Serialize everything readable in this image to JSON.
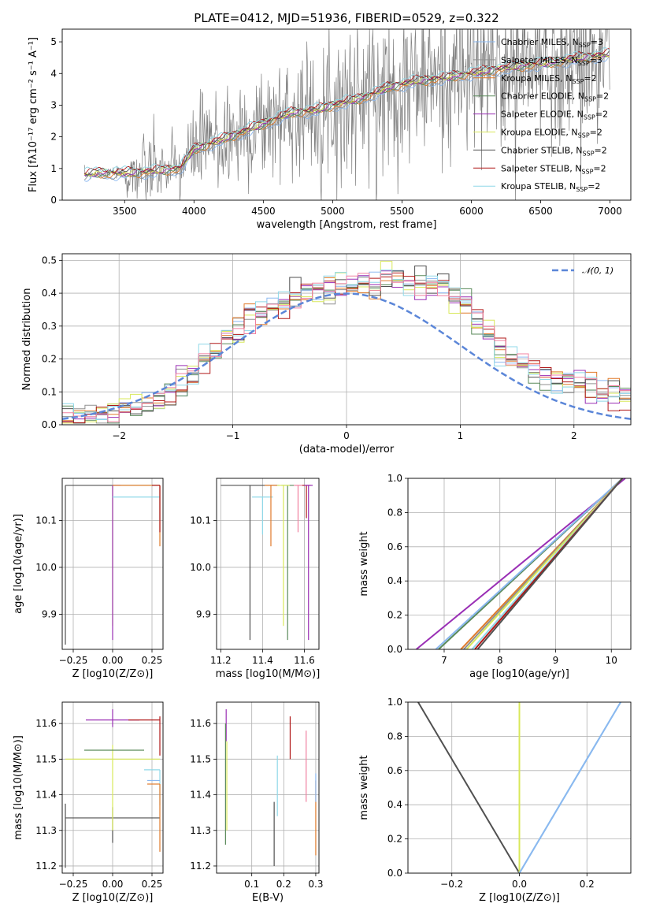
{
  "figure_title": "PLATE=0412, MJD=51936, FIBERID=0529, z=0.322",
  "colors": {
    "data": "#808080",
    "Chabrier MILES": "#8bb8f0",
    "Salpeter MILES": "#909090",
    "Kroupa MILES": "#e07a2a",
    "Chabrier ELODIE": "#5a8a5a",
    "Salpeter ELODIE": "#9a2fb5",
    "Kroupa ELODIE": "#d8e85a",
    "Chabrier STELIB": "#505050",
    "Salpeter STELIB": "#b01818",
    "Kroupa STELIB": "#8fd8e8",
    "extra_pink": "#f080a0",
    "normal_curve": "#5b86d8"
  },
  "legend_labels": [
    {
      "name": "Chabrier MILES",
      "text": "Chabrier MILES, N",
      "sub": "SSP",
      "rest": "=3"
    },
    {
      "name": "Salpeter MILES",
      "text": "Salpeter MILES, N",
      "sub": "SSP",
      "rest": "=3"
    },
    {
      "name": "Kroupa MILES",
      "text": "Kroupa MILES, N",
      "sub": "SSP",
      "rest": "=2"
    },
    {
      "name": "Chabrier ELODIE",
      "text": "Chabrier ELODIE, N",
      "sub": "SSP",
      "rest": "=2"
    },
    {
      "name": "Salpeter ELODIE",
      "text": "Salpeter ELODIE, N",
      "sub": "SSP",
      "rest": "=2"
    },
    {
      "name": "Kroupa ELODIE",
      "text": "Kroupa ELODIE, N",
      "sub": "SSP",
      "rest": "=2"
    },
    {
      "name": "Chabrier STELIB",
      "text": "Chabrier STELIB, N",
      "sub": "SSP",
      "rest": "=2"
    },
    {
      "name": "Salpeter STELIB",
      "text": "Salpeter STELIB, N",
      "sub": "SSP",
      "rest": "=2"
    },
    {
      "name": "Kroupa STELIB",
      "text": "Kroupa STELIB, N",
      "sub": "SSP",
      "rest": "=2"
    }
  ],
  "chart_data": [
    {
      "id": "spectrum",
      "type": "line",
      "xlabel": "wavelength [Angstrom, rest frame]",
      "ylabel": "Flux [fλ10⁻¹⁷ erg cm⁻² s⁻¹ A⁻¹]",
      "xlim": [
        3050,
        7150
      ],
      "ylim": [
        0,
        5.4
      ],
      "xticks": [
        3500,
        4000,
        4500,
        5000,
        5500,
        6000,
        6500,
        7000
      ],
      "yticks": [
        0,
        1,
        2,
        3,
        4,
        5
      ],
      "grid": false,
      "legend": "top-right",
      "model_anchor_x": [
        3210,
        3300,
        3500,
        3700,
        3900,
        4000,
        4200,
        4500,
        4700,
        4900,
        5000,
        5200,
        5400,
        5600,
        5800,
        6000,
        6300,
        6600,
        6800,
        7000
      ],
      "model_anchor_y": [
        0.8,
        0.85,
        0.85,
        0.9,
        1.0,
        1.6,
        1.9,
        2.4,
        2.75,
        2.85,
        3.0,
        3.2,
        3.55,
        3.75,
        3.85,
        4.0,
        4.2,
        4.35,
        4.5,
        4.6
      ],
      "data_range": [
        3210,
        7000
      ]
    },
    {
      "id": "residuals",
      "type": "histogram",
      "xlabel": "(data-model)/error",
      "ylabel": "Normed distribution",
      "xlim": [
        -2.5,
        2.5
      ],
      "ylim": [
        0,
        0.52
      ],
      "xticks": [
        -2,
        -1,
        0,
        1,
        2
      ],
      "yticks": [
        0.0,
        0.1,
        0.2,
        0.3,
        0.4,
        0.5
      ],
      "grid": true,
      "legend": "top-right",
      "legend_label": "N(0, 1)",
      "bin_width": 0.1,
      "base_shape": [
        0.02,
        0.02,
        0.03,
        0.03,
        0.04,
        0.05,
        0.06,
        0.07,
        0.08,
        0.09,
        0.12,
        0.15,
        0.19,
        0.23,
        0.27,
        0.3,
        0.32,
        0.34,
        0.36,
        0.37,
        0.39,
        0.4,
        0.41,
        0.42,
        0.43,
        0.43,
        0.43,
        0.44,
        0.44,
        0.44,
        0.43,
        0.43,
        0.42,
        0.41,
        0.39,
        0.37,
        0.33,
        0.28,
        0.22,
        0.2,
        0.18,
        0.16,
        0.15,
        0.14,
        0.13,
        0.12,
        0.11,
        0.1,
        0.09,
        0.08,
        0.07,
        0.07,
        0.06,
        0.05,
        0.05,
        0.04,
        0.04,
        0.03,
        0.03,
        0.03
      ]
    },
    {
      "id": "age-vs-Z",
      "type": "scatter",
      "xlabel": "Z [log10(Z/Z⊙)]",
      "ylabel": "age  [log10(age/yr)]",
      "xlim": [
        -0.32,
        0.32
      ],
      "ylim": [
        9.825,
        10.19
      ],
      "xticks": [
        -0.25,
        0.0,
        0.25
      ],
      "yticks": [
        9.9,
        10.0,
        10.1
      ],
      "grid": true,
      "crosses": [
        {
          "series": "Chabrier STELIB",
          "x": -0.3,
          "y": 10.175,
          "xerr": [
            0,
            0.6
          ],
          "yerr": [
            0.34,
            0
          ]
        },
        {
          "series": "Kroupa ELODIE",
          "x": 0.0,
          "y": 10.175,
          "xerr": [
            0,
            0.3
          ],
          "yerr": [
            0.3,
            0
          ]
        },
        {
          "series": "Salpeter ELODIE",
          "x": 0.0,
          "y": 10.175,
          "xerr": [
            0,
            0.05
          ],
          "yerr": [
            0.33,
            0
          ]
        },
        {
          "series": "Kroupa STELIB",
          "x": 0.3,
          "y": 10.15,
          "xerr": [
            0.3,
            0
          ],
          "yerr": [
            0.05,
            0.025
          ]
        },
        {
          "series": "Kroupa MILES",
          "x": 0.3,
          "y": 10.175,
          "xerr": [
            0.3,
            0
          ],
          "yerr": [
            0.13,
            0
          ]
        },
        {
          "series": "Salpeter STELIB",
          "x": 0.3,
          "y": 10.175,
          "xerr": [
            0.05,
            0
          ],
          "yerr": [
            0.1,
            0
          ]
        }
      ]
    },
    {
      "id": "age-vs-mass",
      "type": "scatter",
      "xlabel": "mass [log10(M/M⊙)]",
      "xlim": [
        11.18,
        11.67
      ],
      "ylim": [
        9.825,
        10.19
      ],
      "xticks": [
        11.2,
        11.4,
        11.6
      ],
      "yticks": [
        9.9,
        10.0,
        10.1
      ],
      "grid": true,
      "crosses": [
        {
          "series": "Chabrier STELIB",
          "x": 11.34,
          "y": 10.175,
          "xerr": [
            0.14,
            0.14
          ],
          "yerr": [
            0.33,
            0
          ]
        },
        {
          "series": "Kroupa STELIB",
          "x": 11.4,
          "y": 10.15,
          "xerr": [
            0.05,
            0.05
          ],
          "yerr": [
            0.08,
            0
          ]
        },
        {
          "series": "Kroupa MILES",
          "x": 11.44,
          "y": 10.175,
          "xerr": [
            0.03,
            0.03
          ],
          "yerr": [
            0.13,
            0
          ]
        },
        {
          "series": "Chabrier ELODIE",
          "x": 11.52,
          "y": 10.175,
          "xerr": [
            0.03,
            0.03
          ],
          "yerr": [
            0.33,
            0
          ]
        },
        {
          "series": "Kroupa ELODIE",
          "x": 11.5,
          "y": 10.175,
          "xerr": [
            0.03,
            0.03
          ],
          "yerr": [
            0.3,
            0
          ]
        },
        {
          "series": "extra_pink",
          "x": 11.57,
          "y": 10.175,
          "xerr": [
            0.02,
            0.02
          ],
          "yerr": [
            0.1,
            0
          ]
        },
        {
          "series": "Salpeter STELIB",
          "x": 11.61,
          "y": 10.175,
          "xerr": [
            0.02,
            0.02
          ],
          "yerr": [
            0.07,
            0
          ]
        },
        {
          "series": "Salpeter ELODIE",
          "x": 11.62,
          "y": 10.175,
          "xerr": [
            0.02,
            0.02
          ],
          "yerr": [
            0.33,
            0
          ]
        }
      ]
    },
    {
      "id": "cumulative-age",
      "type": "line",
      "xlabel": "age  [log10(age/yr)]",
      "ylabel": "mass weight",
      "xlim": [
        6.35,
        10.35
      ],
      "ylim": [
        0,
        1
      ],
      "xticks": [
        7,
        8,
        9,
        10
      ],
      "yticks": [
        0.0,
        0.2,
        0.4,
        0.6,
        0.8,
        1.0
      ],
      "grid": true,
      "lines": [
        {
          "series": "Salpeter ELODIE",
          "x": [
            6.5,
            10.25
          ],
          "y": [
            0,
            1
          ]
        },
        {
          "series": "Chabrier ELODIE",
          "x": [
            6.9,
            10.2
          ],
          "y": [
            0,
            1
          ]
        },
        {
          "series": "Chabrier MILES",
          "x": [
            6.85,
            10.2
          ],
          "y": [
            0,
            1
          ]
        },
        {
          "series": "Kroupa MILES",
          "x": [
            7.3,
            10.2
          ],
          "y": [
            0,
            1
          ]
        },
        {
          "series": "Salpeter MILES",
          "x": [
            7.35,
            10.2
          ],
          "y": [
            0,
            1
          ]
        },
        {
          "series": "Kroupa ELODIE",
          "x": [
            7.4,
            10.2
          ],
          "y": [
            0,
            1
          ]
        },
        {
          "series": "Kroupa STELIB",
          "x": [
            7.5,
            10.2
          ],
          "y": [
            0,
            1
          ]
        },
        {
          "series": "Salpeter STELIB",
          "x": [
            7.55,
            10.2
          ],
          "y": [
            0,
            1
          ]
        },
        {
          "series": "Chabrier STELIB",
          "x": [
            7.6,
            10.2
          ],
          "y": [
            0,
            1
          ]
        }
      ]
    },
    {
      "id": "mass-vs-Z",
      "type": "scatter",
      "xlabel": "Z [log10(Z/Z⊙)]",
      "ylabel": "mass [log10(M/M⊙)]",
      "xlim": [
        -0.32,
        0.32
      ],
      "ylim": [
        11.18,
        11.66
      ],
      "xticks": [
        -0.25,
        0.0,
        0.25
      ],
      "yticks": [
        11.2,
        11.3,
        11.4,
        11.5,
        11.6
      ],
      "grid": true,
      "crosses": [
        {
          "series": "Chabrier STELIB",
          "x": -0.3,
          "y": 11.335,
          "xerr": [
            0,
            0.6
          ],
          "yerr": [
            0.14,
            0.04
          ]
        },
        {
          "series": "Chabrier STELIB",
          "x": 0.0,
          "y": 11.335,
          "xerr": [
            0,
            0
          ],
          "yerr": [
            0.07,
            0.03
          ]
        },
        {
          "series": "Kroupa ELODIE",
          "x": 0.0,
          "y": 11.5,
          "xerr": [
            0.3,
            0.3
          ],
          "yerr": [
            0.2,
            0.04
          ]
        },
        {
          "series": "Chabrier ELODIE",
          "x": 0.0,
          "y": 11.525,
          "xerr": [
            0.18,
            0.2
          ],
          "yerr": [
            0,
            0
          ]
        },
        {
          "series": "Salpeter ELODIE",
          "x": 0.0,
          "y": 11.61,
          "xerr": [
            0.17,
            0.17
          ],
          "yerr": [
            0.02,
            0.03
          ]
        },
        {
          "series": "Salpeter STELIB",
          "x": 0.3,
          "y": 11.61,
          "xerr": [
            0.2,
            0
          ],
          "yerr": [
            0.1,
            0.01
          ]
        },
        {
          "series": "Kroupa STELIB",
          "x": 0.3,
          "y": 11.47,
          "xerr": [
            0.1,
            0
          ],
          "yerr": [
            0.1,
            0
          ]
        },
        {
          "series": "Kroupa MILES",
          "x": 0.3,
          "y": 11.43,
          "xerr": [
            0.08,
            0
          ],
          "yerr": [
            0.19,
            0
          ]
        },
        {
          "series": "Chabrier MILES",
          "x": 0.3,
          "y": 11.44,
          "xerr": [
            0.08,
            0
          ],
          "yerr": [
            0,
            0
          ]
        }
      ]
    },
    {
      "id": "mass-vs-EBV",
      "type": "scatter",
      "xlabel": "E(B-V)",
      "xlim": [
        -0.01,
        0.31
      ],
      "ylim": [
        11.18,
        11.66
      ],
      "xticks": [
        0.1,
        0.2,
        0.3
      ],
      "yticks": [
        11.2,
        11.3,
        11.4,
        11.5,
        11.6
      ],
      "grid": true,
      "bars": [
        {
          "series": "Salpeter ELODIE",
          "x": 0.02,
          "y0": 11.55,
          "y1": 11.64
        },
        {
          "series": "Kroupa ELODIE",
          "x": 0.022,
          "y0": 11.3,
          "y1": 11.55
        },
        {
          "series": "Chabrier ELODIE",
          "x": 0.018,
          "y0": 11.26,
          "y1": 11.6
        },
        {
          "series": "Chabrier STELIB",
          "x": 0.17,
          "y0": 11.2,
          "y1": 11.38
        },
        {
          "series": "Kroupa STELIB",
          "x": 0.18,
          "y0": 11.34,
          "y1": 11.51
        },
        {
          "series": "Salpeter STELIB",
          "x": 0.22,
          "y0": 11.5,
          "y1": 11.62
        },
        {
          "series": "extra_pink",
          "x": 0.27,
          "y0": 11.38,
          "y1": 11.58
        },
        {
          "series": "Kroupa MILES",
          "x": 0.3,
          "y0": 11.23,
          "y1": 11.44
        },
        {
          "series": "Chabrier MILES",
          "x": 0.3,
          "y0": 11.38,
          "y1": 11.46
        }
      ]
    },
    {
      "id": "cumulative-Z",
      "type": "line",
      "xlabel": "Z [log10(Z/Z⊙)]",
      "ylabel": "mass weight",
      "xlim": [
        -0.33,
        0.33
      ],
      "ylim": [
        0,
        1
      ],
      "xticks": [
        -0.2,
        0.0,
        0.2
      ],
      "yticks": [
        0.0,
        0.2,
        0.4,
        0.6,
        0.8,
        1.0
      ],
      "grid": true,
      "lines": [
        {
          "series": "Chabrier STELIB",
          "x": [
            -0.3,
            0.0
          ],
          "y": [
            1,
            0
          ]
        },
        {
          "series": "Kroupa ELODIE",
          "x": [
            0.0,
            0.0
          ],
          "y": [
            0,
            1
          ]
        },
        {
          "series": "Kroupa STELIB",
          "x": [
            0.0,
            0.3
          ],
          "y": [
            0,
            1
          ]
        },
        {
          "series": "Chabrier MILES",
          "x": [
            0.0,
            0.3
          ],
          "y": [
            0,
            1
          ]
        }
      ]
    }
  ]
}
